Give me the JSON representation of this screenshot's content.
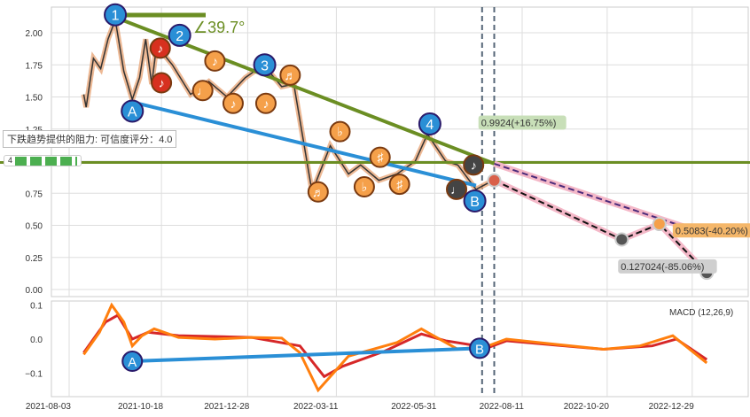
{
  "chart_data": {
    "type": "line",
    "title": "",
    "x_ticks": [
      "2021-08-03",
      "2021-10-18",
      "2021-12-28",
      "2022-03-11",
      "2022-05-31",
      "2022-08-11",
      "2022-10-20",
      "2022-12-29"
    ],
    "x_tick_days": [
      0,
      76,
      147,
      220,
      301,
      373,
      443,
      513
    ],
    "price_panel": {
      "ylim": [
        -0.03,
        2.2
      ],
      "y_ticks": [
        "0.00",
        "0.25",
        "0.50",
        "0.75",
        "1.00",
        "1.25",
        "1.50",
        "1.75",
        "2.00"
      ],
      "y_tick_values": [
        0,
        0.25,
        0.5,
        0.75,
        1,
        1.25,
        1.5,
        1.75,
        2
      ],
      "price_pivots": [
        [
          12,
          1.52
        ],
        [
          14,
          1.42
        ],
        [
          20,
          1.8
        ],
        [
          26,
          1.72
        ],
        [
          32,
          1.95
        ],
        [
          38,
          2.1
        ],
        [
          45,
          1.7
        ],
        [
          52,
          1.48
        ],
        [
          58,
          1.65
        ],
        [
          63,
          1.95
        ],
        [
          68,
          1.6
        ],
        [
          72,
          1.9
        ],
        [
          85,
          1.75
        ],
        [
          100,
          1.52
        ],
        [
          115,
          1.62
        ],
        [
          130,
          1.5
        ],
        [
          145,
          1.65
        ],
        [
          160,
          1.75
        ],
        [
          175,
          1.58
        ],
        [
          185,
          1.6
        ],
        [
          200,
          0.76
        ],
        [
          215,
          1.12
        ],
        [
          230,
          0.9
        ],
        [
          240,
          0.97
        ],
        [
          255,
          0.85
        ],
        [
          270,
          0.9
        ],
        [
          285,
          1.0
        ],
        [
          295,
          1.21
        ],
        [
          310,
          1.0
        ],
        [
          320,
          0.97
        ],
        [
          335,
          0.78
        ],
        [
          345,
          0.83
        ]
      ],
      "resistance_line": [
        [
          38,
          2.12
        ],
        [
          350,
          0.98
        ]
      ],
      "support_line": [
        [
          52,
          1.46
        ],
        [
          335,
          0.81
        ]
      ],
      "horizontal_level": 0.99,
      "angle_label": "∠39.7°",
      "pivot_labels": [
        {
          "t": "1",
          "d": 38,
          "v": 2.14
        },
        {
          "t": "A",
          "d": 52,
          "v": 1.39
        },
        {
          "t": "2",
          "d": 91,
          "v": 1.98
        },
        {
          "t": "3",
          "d": 161,
          "v": 1.75
        },
        {
          "t": "4",
          "d": 297,
          "v": 1.29
        },
        {
          "t": "B",
          "d": 334,
          "v": 0.69
        }
      ],
      "notes": [
        {
          "s": "♪",
          "c": "#d7301f",
          "d": 75,
          "v": 1.88
        },
        {
          "s": "♪",
          "c": "#d7301f",
          "d": 76,
          "v": 1.61
        },
        {
          "s": "♩",
          "c": "#f5a04a",
          "d": 110,
          "v": 1.55
        },
        {
          "s": "♪",
          "c": "#f5a04a",
          "d": 120,
          "v": 1.78
        },
        {
          "s": "♪",
          "c": "#f5a04a",
          "d": 135,
          "v": 1.45
        },
        {
          "s": "♪",
          "c": "#f5a04a",
          "d": 162,
          "v": 1.45
        },
        {
          "s": "♬",
          "c": "#f5a04a",
          "d": 182,
          "v": 1.67
        },
        {
          "s": "♬",
          "c": "#f5a04a",
          "d": 205,
          "v": 0.76
        },
        {
          "s": "♭",
          "c": "#f5a04a",
          "d": 223,
          "v": 1.23
        },
        {
          "s": "♭",
          "c": "#f5a04a",
          "d": 243,
          "v": 0.8
        },
        {
          "s": "♯",
          "c": "#f5a04a",
          "d": 256,
          "v": 1.03
        },
        {
          "s": "♯",
          "c": "#f5a04a",
          "d": 272,
          "v": 0.82
        },
        {
          "s": "♪",
          "c": "#444",
          "d": 333,
          "v": 0.97
        },
        {
          "s": "♩",
          "c": "#444",
          "d": 319,
          "v": 0.78
        }
      ],
      "projection_lower": [
        [
          350,
          0.85
        ],
        [
          455,
          0.39
        ],
        [
          486,
          0.51
        ],
        [
          525,
          0.13
        ]
      ],
      "projection_upper": [
        [
          350,
          0.98
        ],
        [
          525,
          0.43
        ]
      ],
      "annotations": [
        {
          "text": "0.9924(+16.75%)",
          "d": 337,
          "v": 1.3,
          "bg": "#c8dfb8"
        },
        {
          "text": "0.5083(-40.20%)",
          "d": 497,
          "v": 0.46,
          "bg": "#f5b76a"
        },
        {
          "text": "0.127024(-85.06%)",
          "d": 452,
          "v": 0.18,
          "bg": "#cfcfcf"
        }
      ],
      "vlines": [
        340,
        350
      ]
    },
    "macd_panel": {
      "label": "MACD (12,26,9)",
      "ylim": [
        -0.16,
        0.12
      ],
      "y_ticks": [
        "0.1",
        "0.0",
        "−0.1"
      ],
      "y_tick_values": [
        0.1,
        0,
        -0.1
      ],
      "dif": [
        [
          12,
          -0.045
        ],
        [
          25,
          0.02
        ],
        [
          35,
          0.1
        ],
        [
          45,
          0.05
        ],
        [
          52,
          -0.02
        ],
        [
          60,
          0.01
        ],
        [
          70,
          0.03
        ],
        [
          90,
          0.005
        ],
        [
          120,
          0.0
        ],
        [
          150,
          0.005
        ],
        [
          175,
          0.003
        ],
        [
          190,
          -0.04
        ],
        [
          205,
          -0.15
        ],
        [
          215,
          -0.11
        ],
        [
          230,
          -0.05
        ],
        [
          250,
          -0.03
        ],
        [
          270,
          -0.01
        ],
        [
          290,
          0.03
        ],
        [
          300,
          0.01
        ],
        [
          320,
          -0.03
        ],
        [
          345,
          -0.02
        ],
        [
          360,
          0.0
        ],
        [
          440,
          -0.03
        ],
        [
          470,
          -0.02
        ],
        [
          497,
          0.01
        ],
        [
          525,
          -0.07
        ]
      ],
      "dea": [
        [
          12,
          -0.04
        ],
        [
          30,
          0.05
        ],
        [
          40,
          0.07
        ],
        [
          52,
          0.0
        ],
        [
          65,
          0.02
        ],
        [
          90,
          0.01
        ],
        [
          150,
          0.005
        ],
        [
          190,
          -0.02
        ],
        [
          210,
          -0.11
        ],
        [
          225,
          -0.08
        ],
        [
          260,
          -0.035
        ],
        [
          290,
          0.015
        ],
        [
          310,
          -0.005
        ],
        [
          345,
          -0.025
        ],
        [
          360,
          -0.005
        ],
        [
          440,
          -0.03
        ],
        [
          480,
          -0.02
        ],
        [
          500,
          0.0
        ],
        [
          525,
          -0.06
        ]
      ],
      "support_line": [
        [
          52,
          -0.065
        ],
        [
          338,
          -0.027
        ]
      ],
      "labels": [
        {
          "t": "A",
          "d": 52,
          "v": -0.065
        },
        {
          "t": "B",
          "d": 338,
          "v": -0.027
        }
      ]
    }
  },
  "widgets": {
    "tooltip": "下跌趋势提供的阻力: 可信度评分：4.0",
    "score": "4"
  }
}
